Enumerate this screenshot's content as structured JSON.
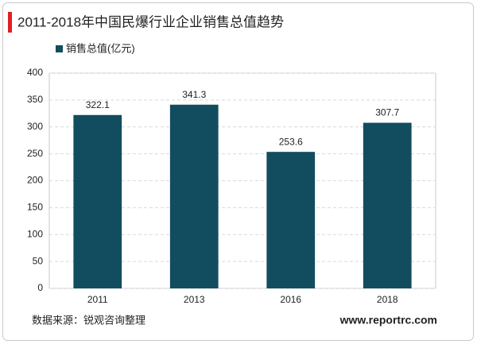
{
  "chart_data": {
    "type": "bar",
    "title": "2011-2018年中国民爆行业企业销售总值趋势",
    "categories": [
      "2011",
      "2013",
      "2016",
      "2018"
    ],
    "series": [
      {
        "name": "销售总值(亿元)",
        "color": "#124c5f",
        "values": [
          322.1,
          341.3,
          253.6,
          307.7
        ]
      }
    ],
    "ylim": [
      0,
      400
    ],
    "yticks": [
      0,
      50,
      100,
      150,
      200,
      250,
      300,
      350,
      400
    ],
    "grid": true,
    "legend": "top-left"
  },
  "source": "数据来源：锐观咨询整理",
  "website": "www.reportrc.com"
}
